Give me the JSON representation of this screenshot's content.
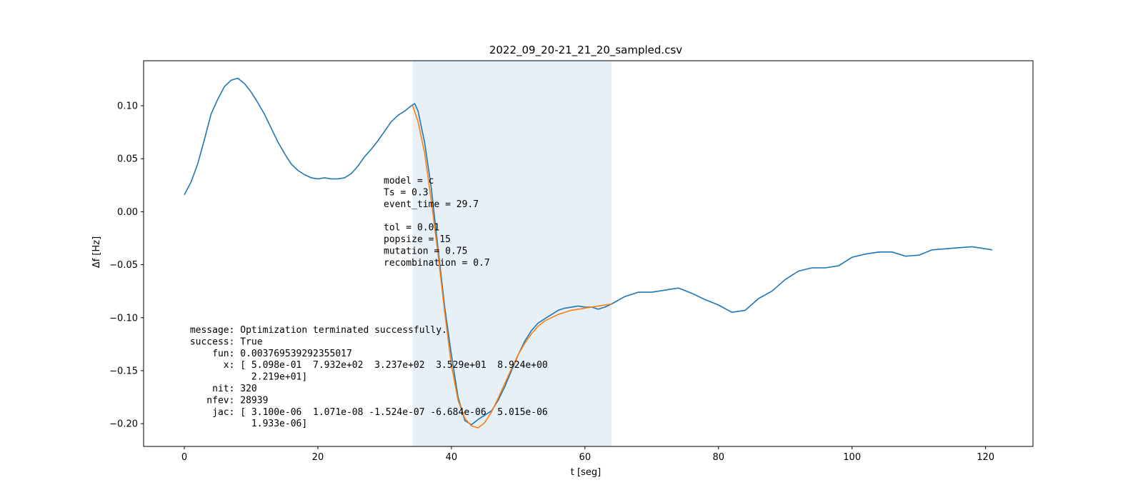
{
  "chart_data": {
    "type": "line",
    "title": "2022_09_20-21_21_20_sampled.csv",
    "xlabel": "t [seg]",
    "ylabel": "Δf [Hz]",
    "xlim": [
      -6.1,
      127.1
    ],
    "ylim": [
      -0.2215,
      0.1425
    ],
    "xticks": [
      0,
      20,
      40,
      60,
      80,
      100,
      120
    ],
    "xtick_labels": [
      "0",
      "20",
      "40",
      "60",
      "80",
      "100",
      "120"
    ],
    "yticks": [
      0.1,
      0.05,
      0.0,
      -0.05,
      -0.1,
      -0.15,
      -0.2
    ],
    "ytick_labels": [
      "0.10",
      "0.05",
      "0.00",
      "−0.05",
      "−0.10",
      "−0.15",
      "−0.20"
    ],
    "grid": false,
    "shaded_region": {
      "x": [
        34.2,
        64.0
      ],
      "color": "#e7eff7"
    },
    "series": [
      {
        "color": "#1f77b4",
        "x": [
          0,
          1,
          2,
          3,
          4,
          5,
          6,
          7,
          8,
          9,
          10,
          11,
          12,
          13,
          14,
          15,
          16,
          17,
          18,
          19,
          20,
          21,
          22,
          23,
          24,
          25,
          26,
          27,
          28,
          29,
          30,
          31,
          32,
          33,
          34,
          34.5,
          35,
          36,
          37,
          38,
          39,
          40,
          41,
          42,
          43,
          44,
          45,
          46,
          47,
          48,
          49,
          50,
          51,
          52,
          53,
          54,
          55,
          56,
          57,
          58,
          59,
          60,
          61,
          62,
          63,
          64,
          66,
          68,
          70,
          72,
          74,
          76,
          78,
          80,
          82,
          84,
          86,
          88,
          90,
          92,
          94,
          96,
          98,
          100,
          102,
          104,
          106,
          108,
          110,
          112,
          114,
          116,
          118,
          121
        ],
        "y": [
          0.016,
          0.028,
          0.045,
          0.068,
          0.092,
          0.106,
          0.118,
          0.124,
          0.126,
          0.121,
          0.113,
          0.103,
          0.092,
          0.079,
          0.066,
          0.055,
          0.045,
          0.039,
          0.035,
          0.032,
          0.031,
          0.032,
          0.031,
          0.031,
          0.032,
          0.036,
          0.043,
          0.052,
          0.059,
          0.067,
          0.076,
          0.085,
          0.091,
          0.095,
          0.1,
          0.102,
          0.095,
          0.065,
          0.022,
          -0.035,
          -0.09,
          -0.135,
          -0.175,
          -0.197,
          -0.201,
          -0.196,
          -0.192,
          -0.188,
          -0.178,
          -0.165,
          -0.15,
          -0.135,
          -0.122,
          -0.112,
          -0.105,
          -0.101,
          -0.097,
          -0.093,
          -0.091,
          -0.09,
          -0.089,
          -0.09,
          -0.09,
          -0.092,
          -0.09,
          -0.087,
          -0.08,
          -0.076,
          -0.076,
          -0.074,
          -0.072,
          -0.077,
          -0.083,
          -0.088,
          -0.095,
          -0.093,
          -0.082,
          -0.075,
          -0.064,
          -0.056,
          -0.053,
          -0.053,
          -0.051,
          -0.043,
          -0.04,
          -0.038,
          -0.038,
          -0.042,
          -0.041,
          -0.036,
          -0.035,
          -0.034,
          -0.033,
          -0.036
        ]
      },
      {
        "color": "#ff7f0e",
        "x": [
          34.2,
          35,
          36,
          37,
          38,
          39,
          40,
          41,
          42,
          43,
          44,
          45,
          46,
          47,
          48,
          49,
          50,
          51,
          52,
          53,
          54,
          55,
          56,
          57,
          58,
          59,
          60,
          61,
          62,
          63,
          64
        ],
        "y": [
          0.1,
          0.085,
          0.055,
          0.01,
          -0.04,
          -0.095,
          -0.145,
          -0.178,
          -0.195,
          -0.202,
          -0.204,
          -0.199,
          -0.189,
          -0.176,
          -0.162,
          -0.148,
          -0.135,
          -0.124,
          -0.115,
          -0.108,
          -0.103,
          -0.1,
          -0.097,
          -0.095,
          -0.093,
          -0.092,
          -0.091,
          -0.09,
          -0.089,
          -0.088,
          -0.087
        ]
      }
    ],
    "annotations": {
      "params": [
        "model = c",
        "Ts = 0.3",
        "event_time = 29.7",
        "",
        "tol = 0.01",
        "popsize = 15",
        "mutation = 0.75",
        "recombination = 0.7"
      ],
      "result": [
        " message: Optimization terminated successfully.",
        " success: True",
        "     fun: 0.003769539292355017",
        "       x: [ 5.098e-01  7.932e+02  3.237e+02  3.529e+01  8.924e+00",
        "            2.219e+01]",
        "     nit: 320",
        "    nfev: 28939",
        "     jac: [ 3.100e-06  1.071e-08 -1.524e-07 -6.684e-06  5.015e-06",
        "            1.933e-06]"
      ]
    }
  }
}
